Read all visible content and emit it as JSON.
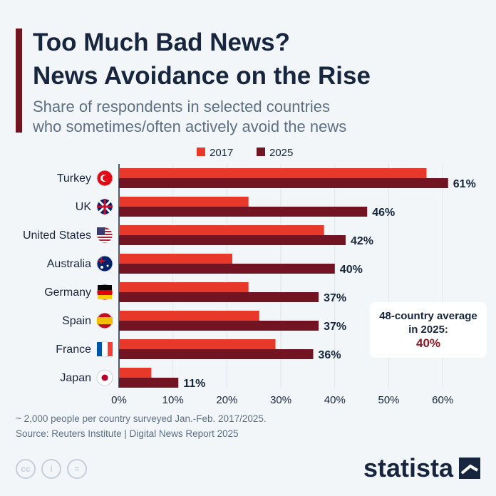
{
  "header": {
    "title_line1": "Too Much Bad News?",
    "title_line2": "News Avoidance on the Rise",
    "subtitle_line1": "Share of respondents in selected countries",
    "subtitle_line2": "who sometimes/often actively avoid the news"
  },
  "chart_data": {
    "type": "bar",
    "orientation": "horizontal",
    "categories": [
      "Turkey",
      "UK",
      "United States",
      "Australia",
      "Germany",
      "Spain",
      "France",
      "Japan"
    ],
    "series": [
      {
        "name": "2017",
        "values": [
          57,
          24,
          38,
          21,
          24,
          26,
          29,
          6
        ],
        "color": "#e8382a"
      },
      {
        "name": "2025",
        "values": [
          61,
          46,
          42,
          40,
          37,
          37,
          36,
          11
        ],
        "color": "#731422"
      }
    ],
    "data_labels": [
      "61%",
      "46%",
      "42%",
      "40%",
      "37%",
      "37%",
      "36%",
      "11%"
    ],
    "xlim": [
      0,
      65
    ],
    "xticks": [
      "0%",
      "10%",
      "20%",
      "30%",
      "40%",
      "50%",
      "60%"
    ],
    "grid": true,
    "legend": "top",
    "flag_icons": [
      "turkey-flag",
      "uk-flag",
      "us-flag",
      "australia-flag",
      "germany-flag",
      "spain-flag",
      "france-flag",
      "japan-flag"
    ]
  },
  "annotation": {
    "line1": "48-country average",
    "line2": "in 2025:",
    "value": "40%"
  },
  "footer": {
    "note": "~ 2,000 people per country surveyed Jan.-Feb. 2017/2025.",
    "source": "Source: Reuters Institute | Digital News Report 2025",
    "brand": "statista",
    "license_icons": [
      "cc",
      "by",
      "nd"
    ]
  }
}
